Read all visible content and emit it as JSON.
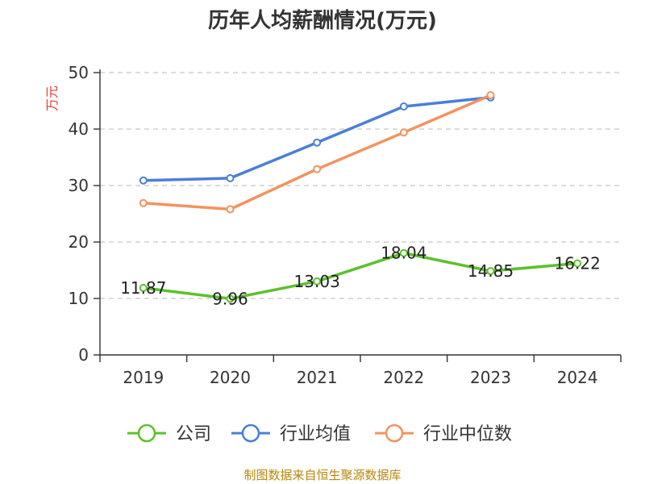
{
  "chart_data": {
    "type": "line",
    "title": "历年人均薪酬情况(万元)",
    "ylabel": "万元",
    "xlabel": "",
    "categories": [
      "2019",
      "2020",
      "2021",
      "2022",
      "2023",
      "2024"
    ],
    "ylim": [
      0,
      50
    ],
    "yticks": [
      0,
      10,
      20,
      30,
      40,
      50
    ],
    "grid": true,
    "legend_position": "bottom",
    "series": [
      {
        "name": "公司",
        "color": "#5cc12b",
        "values": [
          11.87,
          9.96,
          13.03,
          18.04,
          14.85,
          16.22
        ],
        "labels": [
          "11.87",
          "9.96",
          "13.03",
          "18.04",
          "14.85",
          "16.22"
        ]
      },
      {
        "name": "行业均值",
        "color": "#4a7fd8",
        "values": [
          30.9,
          31.3,
          37.6,
          44.0,
          45.6,
          null
        ]
      },
      {
        "name": "行业中位数",
        "color": "#f5925e",
        "values": [
          26.9,
          25.8,
          32.9,
          39.4,
          46.0,
          null
        ]
      }
    ]
  },
  "footer": {
    "source": "制图数据来自恒生聚源数据库"
  }
}
